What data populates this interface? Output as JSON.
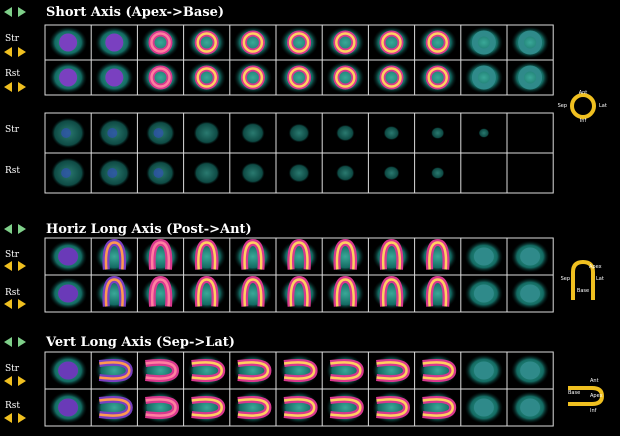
{
  "sections": [
    {
      "title": "Short Axis (Apex->Base)",
      "rows": [
        "Str",
        "Rst"
      ],
      "extra_rows": [
        "Str",
        "Rst"
      ],
      "orientation": [
        "Ant",
        "Sep",
        "Lat",
        "Inf"
      ]
    },
    {
      "title": "Horiz Long Axis (Post->Ant)",
      "rows": [
        "Str",
        "Rst"
      ],
      "orientation": [
        "Apex",
        "Sep",
        "Lat",
        "Base"
      ]
    },
    {
      "title": "Vert Long Axis (Sep->Lat)",
      "rows": [
        "Str",
        "Rst"
      ],
      "orientation": [
        "Ant",
        "Base",
        "Apex",
        "Inf"
      ]
    }
  ]
}
